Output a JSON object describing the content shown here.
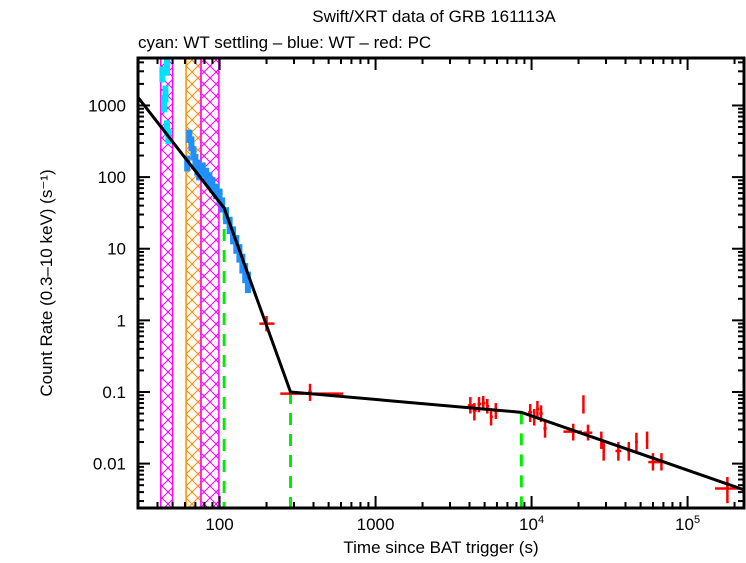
{
  "chart_data": {
    "type": "scatter",
    "title": "Swift/XRT data of GRB 161113A",
    "subtitle": "cyan: WT settling – blue: WT – red: PC",
    "xlabel": "Time since BAT trigger (s)",
    "ylabel": "Count Rate (0.3–10 keV) (s⁻¹)",
    "xscale": "log",
    "yscale": "log",
    "xlim": [
      30,
      230000
    ],
    "ylim": [
      0.0024,
      4600
    ],
    "xticks": [
      {
        "value": 100,
        "label": "100"
      },
      {
        "value": 1000,
        "label": "1000"
      },
      {
        "value": 10000,
        "label": "10⁴"
      },
      {
        "value": 100000,
        "label": "10⁵"
      }
    ],
    "yticks": [
      {
        "value": 1000,
        "label": "1000"
      },
      {
        "value": 100,
        "label": "100"
      },
      {
        "value": 10,
        "label": "10"
      },
      {
        "value": 1,
        "label": "1"
      },
      {
        "value": 0.1,
        "label": "0.1"
      },
      {
        "value": 0.01,
        "label": "0.01"
      }
    ],
    "colors": {
      "wt_settling": "#00e0ff",
      "wt": "#1e90ff",
      "pc": "#ff0000",
      "model": "#000000",
      "breaks": "#00ee00",
      "band_magenta": "#ff00ff",
      "band_orange": "#ff8c00"
    },
    "excluded_bands": [
      {
        "color": "magenta",
        "t_start": 42,
        "t_end": 50
      },
      {
        "color": "orange",
        "t_start": 61,
        "t_end": 76
      },
      {
        "color": "magenta",
        "t_start": 76,
        "t_end": 99
      }
    ],
    "model_breaks": [
      {
        "t": 107,
        "rate": 37
      },
      {
        "t": 285,
        "rate": 0.1
      },
      {
        "t": 8600,
        "rate": 0.052
      }
    ],
    "model": [
      {
        "t": 30,
        "rate": 1300
      },
      {
        "t": 107,
        "rate": 37
      },
      {
        "t": 285,
        "rate": 0.1
      },
      {
        "t": 8600,
        "rate": 0.052
      },
      {
        "t": 230000,
        "rate": 0.0043
      }
    ],
    "series": [
      {
        "name": "WT settling",
        "color": "cyan",
        "points": [
          {
            "t": 46,
            "rate": 3500,
            "terr": 1,
            "rerr": 900
          },
          {
            "t": 43,
            "rate": 2800,
            "terr": 1,
            "rerr": 700
          },
          {
            "t": 45,
            "rate": 1500,
            "terr": 1,
            "rerr": 400
          },
          {
            "t": 44,
            "rate": 1100,
            "terr": 1,
            "rerr": 300
          },
          {
            "t": 46,
            "rate": 500,
            "terr": 1,
            "rerr": 120
          },
          {
            "t": 47,
            "rate": 380,
            "terr": 1,
            "rerr": 90
          }
        ]
      },
      {
        "name": "WT",
        "color": "blue",
        "points": [
          {
            "t": 64,
            "rate": 380,
            "terr": 1,
            "rerr": 80
          },
          {
            "t": 66,
            "rate": 300,
            "terr": 1,
            "rerr": 70
          },
          {
            "t": 68,
            "rate": 220,
            "terr": 1,
            "rerr": 50
          },
          {
            "t": 70,
            "rate": 170,
            "terr": 1,
            "rerr": 40
          },
          {
            "t": 72,
            "rate": 140,
            "terr": 1,
            "rerr": 35
          },
          {
            "t": 62,
            "rate": 160,
            "terr": 1,
            "rerr": 40
          },
          {
            "t": 74,
            "rate": 120,
            "terr": 1,
            "rerr": 30
          },
          {
            "t": 78,
            "rate": 130,
            "terr": 1,
            "rerr": 30
          },
          {
            "t": 82,
            "rate": 110,
            "terr": 1,
            "rerr": 25
          },
          {
            "t": 86,
            "rate": 95,
            "terr": 1,
            "rerr": 22
          },
          {
            "t": 90,
            "rate": 80,
            "terr": 1,
            "rerr": 20
          },
          {
            "t": 95,
            "rate": 65,
            "terr": 1,
            "rerr": 16
          },
          {
            "t": 100,
            "rate": 55,
            "terr": 1,
            "rerr": 14
          },
          {
            "t": 104,
            "rate": 42,
            "terr": 1,
            "rerr": 10
          },
          {
            "t": 110,
            "rate": 30,
            "terr": 1,
            "rerr": 8
          },
          {
            "t": 116,
            "rate": 22,
            "terr": 1,
            "rerr": 6
          },
          {
            "t": 122,
            "rate": 16,
            "terr": 1,
            "rerr": 4.5
          },
          {
            "t": 128,
            "rate": 12,
            "terr": 1,
            "rerr": 3.5
          },
          {
            "t": 134,
            "rate": 9,
            "terr": 1,
            "rerr": 2.6
          },
          {
            "t": 140,
            "rate": 6.5,
            "terr": 1,
            "rerr": 2
          },
          {
            "t": 146,
            "rate": 4.8,
            "terr": 1,
            "rerr": 1.5
          },
          {
            "t": 152,
            "rate": 3.6,
            "terr": 1,
            "rerr": 1.2
          }
        ]
      },
      {
        "name": "PC",
        "color": "red",
        "points": [
          {
            "t": 200,
            "rate": 0.9,
            "tlo": 180,
            "thi": 225,
            "rlo": 0.7,
            "rhi": 1.15
          },
          {
            "t": 290,
            "rate": 0.095,
            "tlo": 245,
            "thi": 370,
            "rlo": 0.095,
            "rhi": 0.095
          },
          {
            "t": 380,
            "rate": 0.1,
            "tlo": 370,
            "thi": 390,
            "rlo": 0.075,
            "rhi": 0.13
          },
          {
            "t": 480,
            "rate": 0.095,
            "tlo": 400,
            "thi": 620,
            "rlo": 0.095,
            "rhi": 0.095
          },
          {
            "t": 4050,
            "rate": 0.065,
            "tlo": 3900,
            "thi": 4250,
            "rlo": 0.05,
            "rhi": 0.085
          },
          {
            "t": 4300,
            "rate": 0.055,
            "tlo": 4200,
            "thi": 4450,
            "rlo": 0.04,
            "rhi": 0.07
          },
          {
            "t": 4600,
            "rate": 0.068,
            "tlo": 4500,
            "thi": 4750,
            "rlo": 0.052,
            "rhi": 0.085
          },
          {
            "t": 4900,
            "rate": 0.07,
            "tlo": 4800,
            "thi": 5050,
            "rlo": 0.055,
            "rhi": 0.088
          },
          {
            "t": 5200,
            "rate": 0.063,
            "tlo": 5100,
            "thi": 5350,
            "rlo": 0.05,
            "rhi": 0.08
          },
          {
            "t": 5500,
            "rate": 0.045,
            "tlo": 5400,
            "thi": 5650,
            "rlo": 0.034,
            "rhi": 0.058
          },
          {
            "t": 5900,
            "rate": 0.055,
            "tlo": 5700,
            "thi": 6200,
            "rlo": 0.042,
            "rhi": 0.07
          },
          {
            "t": 9800,
            "rate": 0.052,
            "tlo": 9500,
            "thi": 10100,
            "rlo": 0.038,
            "rhi": 0.068
          },
          {
            "t": 10400,
            "rate": 0.045,
            "tlo": 10200,
            "thi": 10700,
            "rlo": 0.034,
            "rhi": 0.058
          },
          {
            "t": 10900,
            "rate": 0.058,
            "tlo": 10700,
            "thi": 11200,
            "rlo": 0.044,
            "rhi": 0.075
          },
          {
            "t": 11500,
            "rate": 0.05,
            "tlo": 11200,
            "thi": 11800,
            "rlo": 0.038,
            "rhi": 0.065
          },
          {
            "t": 12200,
            "rate": 0.031,
            "tlo": 11900,
            "thi": 12500,
            "rlo": 0.023,
            "rhi": 0.04
          },
          {
            "t": 18500,
            "rate": 0.028,
            "tlo": 16000,
            "thi": 21000,
            "rlo": 0.021,
            "rhi": 0.036
          },
          {
            "t": 21500,
            "rate": 0.065,
            "tlo": 21200,
            "thi": 21800,
            "rlo": 0.05,
            "rhi": 0.09
          },
          {
            "t": 23000,
            "rate": 0.027,
            "tlo": 21500,
            "thi": 24500,
            "rlo": 0.021,
            "rhi": 0.035
          },
          {
            "t": 28000,
            "rate": 0.021,
            "tlo": 27500,
            "thi": 28500,
            "rlo": 0.016,
            "rhi": 0.028
          },
          {
            "t": 29000,
            "rate": 0.015,
            "tlo": 28500,
            "thi": 29500,
            "rlo": 0.011,
            "rhi": 0.02
          },
          {
            "t": 36000,
            "rate": 0.015,
            "tlo": 34500,
            "thi": 37500,
            "rlo": 0.011,
            "rhi": 0.02
          },
          {
            "t": 42000,
            "rate": 0.015,
            "tlo": 41000,
            "thi": 43000,
            "rlo": 0.011,
            "rhi": 0.02
          },
          {
            "t": 47000,
            "rate": 0.02,
            "tlo": 46000,
            "thi": 48000,
            "rlo": 0.015,
            "rhi": 0.027
          },
          {
            "t": 55000,
            "rate": 0.021,
            "tlo": 54000,
            "thi": 56000,
            "rlo": 0.016,
            "rhi": 0.028
          },
          {
            "t": 60000,
            "rate": 0.0105,
            "tlo": 56000,
            "thi": 65000,
            "rlo": 0.008,
            "rhi": 0.014
          },
          {
            "t": 68000,
            "rate": 0.0105,
            "tlo": 64000,
            "thi": 72000,
            "rlo": 0.008,
            "rhi": 0.014
          },
          {
            "t": 180000,
            "rate": 0.0045,
            "tlo": 150000,
            "thi": 215000,
            "rlo": 0.0028,
            "rhi": 0.0065
          }
        ]
      }
    ]
  }
}
